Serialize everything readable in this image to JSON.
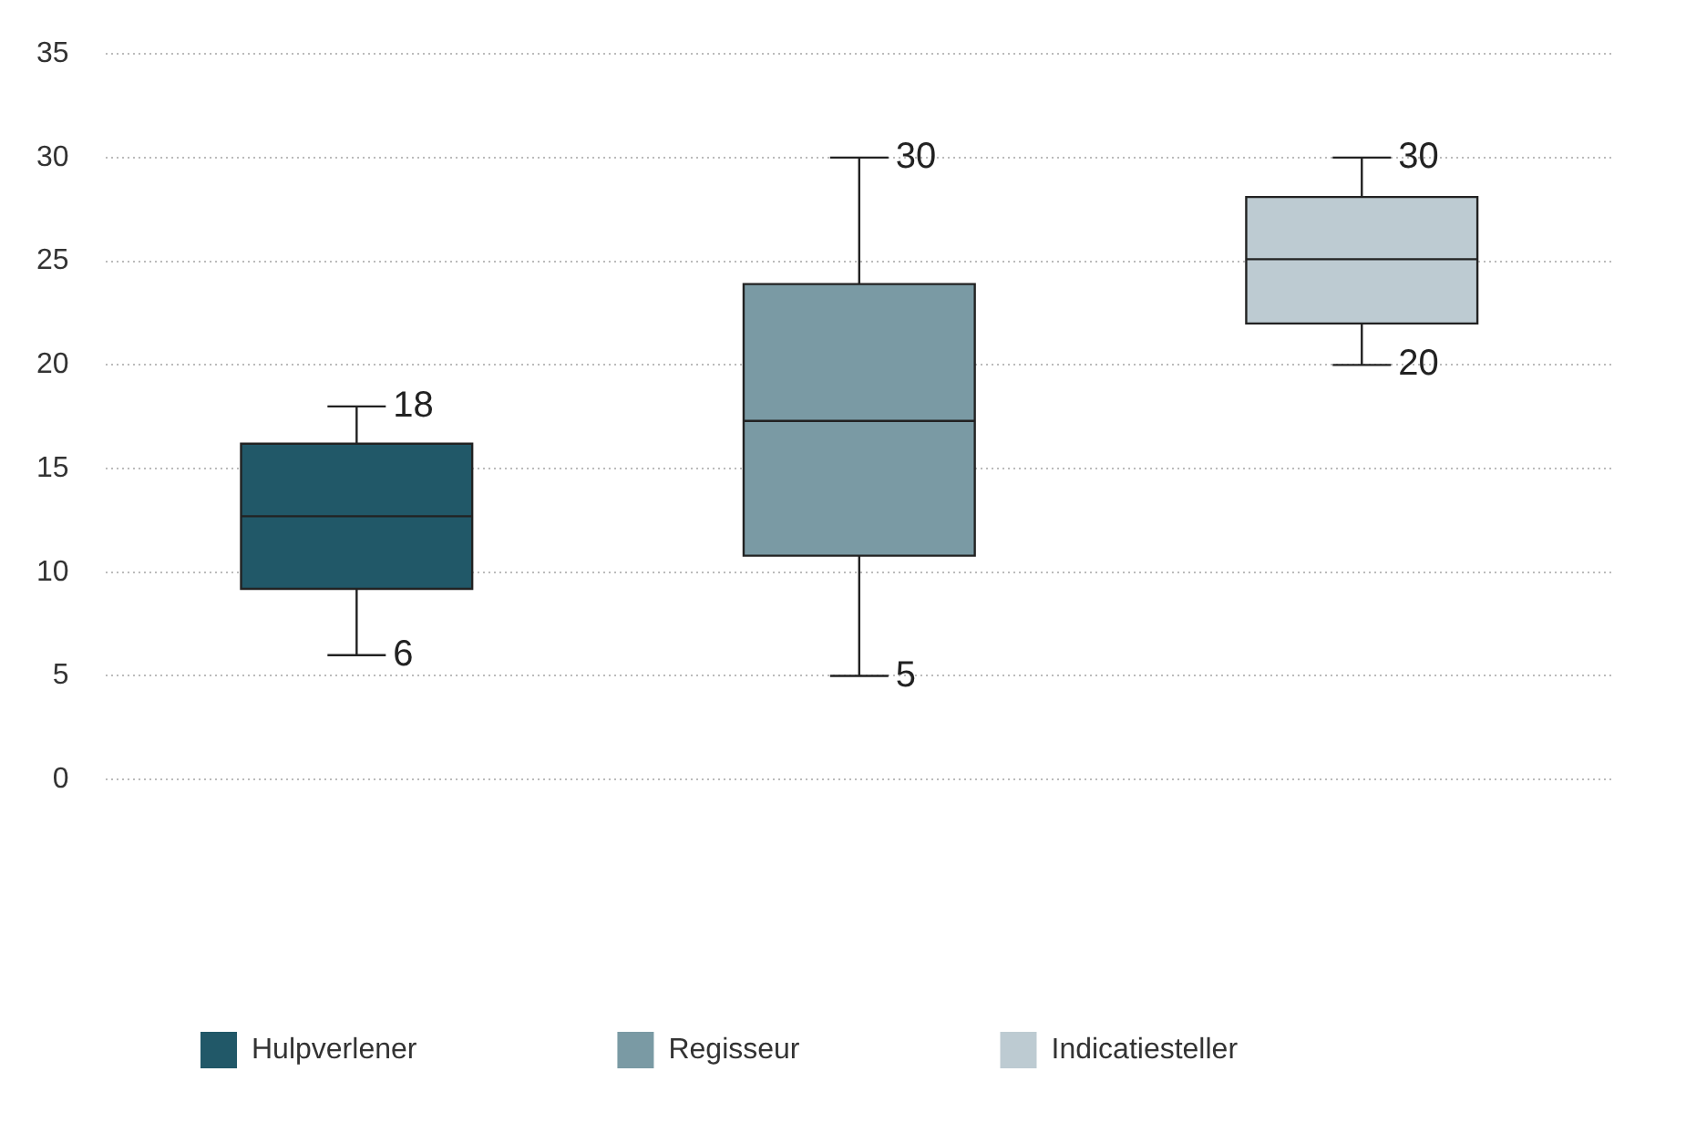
{
  "chart_data": {
    "type": "box",
    "categories": [
      null,
      null,
      null
    ],
    "series": [
      {
        "name": "Hulpverlener",
        "color": "#215868",
        "boxes": [
          {
            "low": 6,
            "q1": 9.2,
            "median": 12.7,
            "q3": 16.2,
            "high": 18
          },
          null,
          null
        ]
      },
      {
        "name": "Regisseur",
        "color": "#7a9aa4",
        "boxes": [
          null,
          {
            "low": 5,
            "q1": 10.8,
            "median": 17.3,
            "q3": 23.9,
            "high": 30
          },
          null
        ]
      },
      {
        "name": "Indicatiesteller",
        "color": "#bdcbd2",
        "boxes": [
          null,
          null,
          {
            "low": 20,
            "q1": 22,
            "median": 25.1,
            "q3": 28.1,
            "high": 30
          }
        ]
      }
    ],
    "ylim": [
      0,
      35
    ],
    "yticks": [
      0,
      5,
      10,
      15,
      20,
      25,
      30,
      35
    ],
    "grid": "y",
    "legend": "bottom",
    "annotations": [
      "18",
      "6",
      "30",
      "5",
      "30",
      "20"
    ]
  }
}
